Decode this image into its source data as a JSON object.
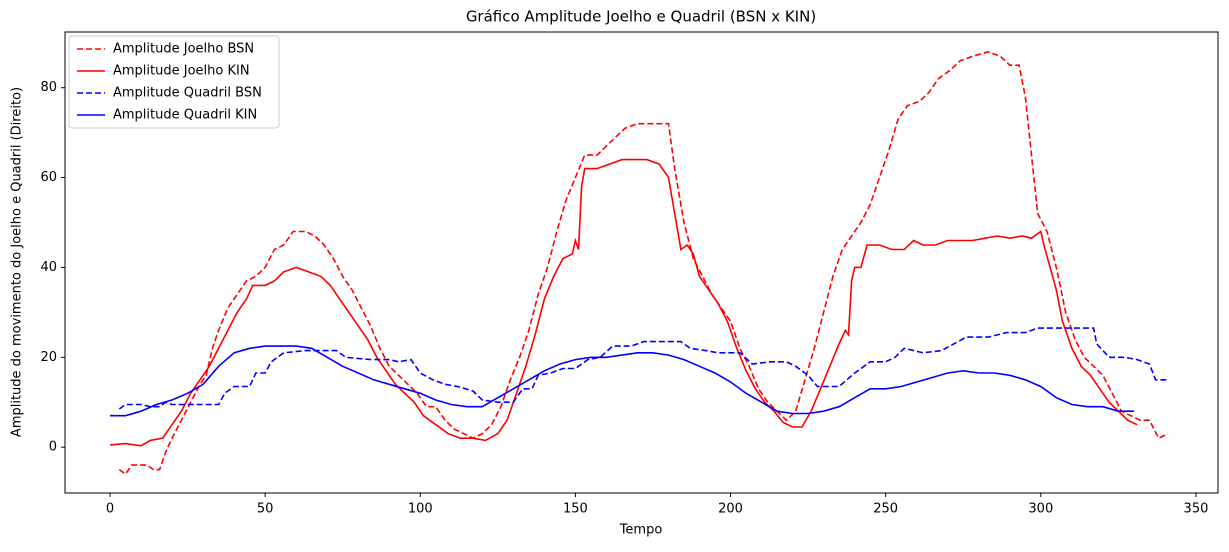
{
  "chart_data": {
    "type": "line",
    "title": "Gráfico Amplitude Joelho e Quadril (BSN x KIN)",
    "xlabel": "Tempo",
    "ylabel": "Amplitude do movimento do Joelho e Quadril (Direito)",
    "xlim": [
      -14.5,
      357.1
    ],
    "ylim": [
      -10.2,
      92.4
    ],
    "xticks": [
      0,
      50,
      100,
      150,
      200,
      250,
      300,
      350
    ],
    "yticks": [
      0,
      20,
      40,
      60,
      80
    ],
    "legend": "upper left",
    "series": [
      {
        "name": "Amplitude Joelho BSN",
        "color": "#ff0000",
        "linestyle": "dashed",
        "x": [
          3,
          5,
          7,
          12,
          14,
          16,
          18,
          20,
          23,
          26,
          29,
          31,
          33,
          35,
          38,
          41,
          44,
          47,
          50,
          53,
          56,
          59,
          63,
          66,
          69,
          72,
          75,
          78,
          81,
          84,
          87,
          90,
          93,
          96,
          99,
          102,
          105,
          108,
          111,
          114,
          117,
          120,
          123,
          126,
          129,
          132,
          135,
          138,
          141,
          144,
          147,
          150,
          153,
          157,
          160,
          163,
          166,
          170,
          175,
          180,
          182,
          185,
          188,
          191,
          194,
          197,
          200,
          203,
          206,
          209,
          212,
          215,
          218,
          221,
          224,
          227,
          230,
          233,
          236,
          239,
          242,
          245,
          248,
          251,
          254,
          257,
          261,
          264,
          267,
          271,
          274,
          278,
          283,
          287,
          290,
          293,
          295,
          297,
          299,
          302,
          305,
          308,
          311,
          314,
          317,
          320,
          323,
          326,
          329,
          332,
          335,
          338,
          341
        ],
        "values": [
          -5,
          -6,
          -4,
          -4,
          -5,
          -5,
          -1,
          2,
          6,
          10,
          14,
          16,
          22,
          26,
          31,
          34,
          37,
          38,
          40,
          44,
          45,
          48,
          48,
          47,
          45,
          42,
          38,
          35,
          31,
          27,
          22,
          18,
          16,
          14,
          12,
          9,
          9,
          6,
          4,
          3,
          2,
          3,
          5,
          9,
          15,
          20,
          26,
          34,
          40,
          48,
          55,
          60,
          65,
          65,
          67,
          69,
          71,
          72,
          72,
          72,
          62,
          50,
          42,
          38,
          34,
          31,
          28,
          22,
          18,
          13,
          10,
          8,
          6,
          8,
          15,
          22,
          30,
          38,
          44,
          47,
          50,
          54,
          60,
          66,
          73,
          76,
          77,
          79,
          82,
          84,
          86,
          87,
          88,
          87,
          85,
          85,
          78,
          65,
          52,
          48,
          40,
          30,
          24,
          20,
          18,
          16,
          12,
          8,
          7,
          6,
          6,
          2,
          3
        ]
      },
      {
        "name": "Amplitude Joelho KIN",
        "color": "#ff0000",
        "linestyle": "solid",
        "x": [
          0,
          5,
          10,
          13,
          17,
          20,
          23,
          26,
          29,
          32,
          35,
          38,
          41,
          44,
          46,
          50,
          53,
          56,
          60,
          64,
          68,
          71,
          74,
          77,
          80,
          83,
          86,
          89,
          92,
          95,
          98,
          101,
          105,
          109,
          113,
          117,
          121,
          125,
          128,
          131,
          134,
          137,
          140,
          143,
          146,
          149,
          150,
          151,
          152,
          153,
          157,
          161,
          165,
          169,
          173,
          177,
          180,
          182,
          184,
          186,
          188,
          190,
          193,
          196,
          199,
          202,
          205,
          208,
          211,
          214,
          217,
          220,
          223,
          226,
          229,
          232,
          235,
          237,
          238,
          239,
          240,
          242,
          244,
          248,
          252,
          256,
          259,
          262,
          266,
          270,
          274,
          278,
          282,
          286,
          290,
          294,
          297,
          300,
          301,
          303,
          305,
          307,
          310,
          313,
          316,
          319,
          322,
          325,
          328,
          331
        ],
        "values": [
          0.5,
          0.8,
          0.3,
          1.5,
          2,
          5,
          8,
          12,
          15,
          18,
          22,
          26,
          30,
          33,
          36,
          36,
          37,
          39,
          40,
          39,
          38,
          36,
          33,
          30,
          27,
          24,
          20,
          17,
          14,
          12,
          10,
          7,
          5,
          3,
          2,
          2,
          1.5,
          3,
          6,
          12,
          18,
          25,
          33,
          38,
          42,
          43,
          46,
          44,
          58,
          62,
          62,
          63,
          64,
          64,
          64,
          63,
          60,
          52,
          44,
          45,
          43,
          38,
          35,
          32,
          28,
          22,
          17,
          13,
          10,
          8,
          5.5,
          4.5,
          4.5,
          8,
          13,
          18,
          23,
          26,
          25,
          37,
          40,
          40,
          45,
          45,
          44,
          44,
          46,
          45,
          45,
          46,
          46,
          46,
          46.5,
          47,
          46.5,
          47,
          46.5,
          48,
          45,
          40,
          35,
          28,
          22,
          18,
          16,
          13,
          10,
          8,
          6,
          5
        ]
      },
      {
        "name": "Amplitude Quadril BSN",
        "color": "#0000ff",
        "linestyle": "dashed",
        "x": [
          3,
          5,
          10,
          13,
          16,
          18,
          20,
          25,
          30,
          35,
          37,
          40,
          45,
          47,
          50,
          52,
          56,
          63,
          68,
          73,
          76,
          84,
          90,
          93,
          97,
          100,
          104,
          108,
          112,
          117,
          120,
          125,
          130,
          133,
          136,
          138,
          142,
          146,
          150,
          154,
          158,
          162,
          168,
          172,
          178,
          184,
          187,
          192,
          196,
          203,
          207,
          213,
          218,
          221,
          225,
          228,
          235,
          240,
          245,
          250,
          253,
          256,
          262,
          268,
          272,
          276,
          283,
          289,
          295,
          299,
          305,
          310,
          317,
          318,
          322,
          327,
          331,
          335,
          337,
          341
        ],
        "values": [
          8.5,
          9.5,
          9.5,
          9,
          9,
          10,
          9.5,
          9.5,
          9.5,
          9.5,
          12,
          13.5,
          13.5,
          16.5,
          16.5,
          19,
          21,
          21.5,
          21.5,
          21.5,
          20,
          19.5,
          19.5,
          19,
          19.5,
          16.5,
          15,
          14,
          13.5,
          12.5,
          10.5,
          10,
          10,
          13,
          13,
          16,
          16.5,
          17.5,
          17.5,
          19.5,
          20,
          22.5,
          22.5,
          23.5,
          23.5,
          23.5,
          22,
          21.5,
          21,
          21,
          18.5,
          19,
          19,
          18,
          16,
          13.5,
          13.5,
          16.5,
          19,
          19,
          20,
          22,
          21,
          21.5,
          23,
          24.5,
          24.5,
          25.5,
          25.5,
          26.5,
          26.5,
          26.5,
          26.5,
          23,
          20,
          20,
          19.5,
          18.5,
          15,
          15
        ]
      },
      {
        "name": "Amplitude Quadril KIN",
        "color": "#0000ff",
        "linestyle": "solid",
        "x": [
          0,
          5,
          10,
          15,
          20,
          25,
          30,
          35,
          40,
          45,
          50,
          55,
          60,
          65,
          70,
          75,
          80,
          85,
          90,
          95,
          100,
          105,
          110,
          115,
          120,
          125,
          130,
          135,
          140,
          145,
          150,
          155,
          160,
          165,
          170,
          175,
          180,
          185,
          190,
          195,
          200,
          205,
          210,
          215,
          220,
          225,
          230,
          235,
          240,
          245,
          250,
          255,
          260,
          265,
          270,
          275,
          280,
          285,
          290,
          295,
          300,
          305,
          310,
          315,
          320,
          325,
          330
        ],
        "values": [
          7,
          7,
          8,
          9.5,
          10.5,
          12,
          14,
          18,
          21,
          22,
          22.5,
          22.5,
          22.5,
          22,
          20,
          18,
          16.5,
          15,
          14,
          13,
          12,
          10.5,
          9.5,
          9,
          9,
          11,
          13,
          15,
          17,
          18.5,
          19.5,
          20,
          20,
          20.5,
          21,
          21,
          20.5,
          19.5,
          18,
          16.5,
          14.5,
          12,
          10,
          8,
          7.5,
          7.5,
          8,
          9,
          11,
          13,
          13,
          13.5,
          14.5,
          15.5,
          16.5,
          17,
          16.5,
          16.5,
          16,
          15,
          13.5,
          11,
          9.5,
          9,
          9,
          8,
          8
        ]
      }
    ]
  }
}
